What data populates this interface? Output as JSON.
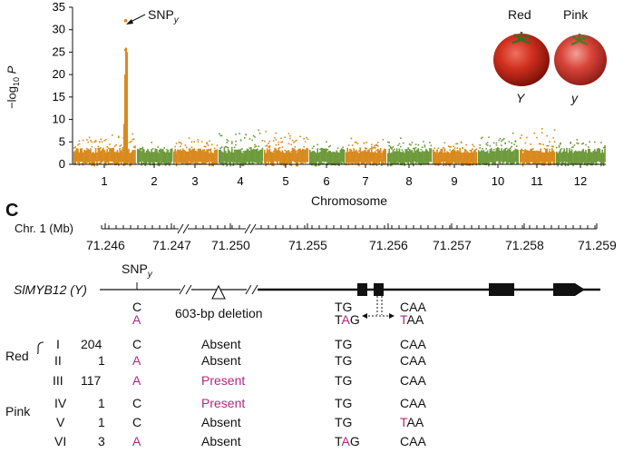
{
  "colors": {
    "orange": "#d98a1e",
    "green": "#6e9a3c",
    "magenta": "#b0287e",
    "tomato": "#c8281c"
  },
  "panel_label": "C",
  "manhattan": {
    "y_ticks": [
      "0",
      "5",
      "10",
      "15",
      "20",
      "25",
      "30",
      "35"
    ],
    "ylabel_prefix": "−log",
    "ylabel_sub": "10",
    "ylabel_suffix": "P",
    "xlabel": "Chromosome",
    "chromosomes": [
      "1",
      "2",
      "3",
      "4",
      "5",
      "6",
      "7",
      "8",
      "9",
      "10",
      "11",
      "12"
    ],
    "snp_label": "SNP",
    "snp_sub": "y",
    "red_label": "Red",
    "pink_label": "Pink",
    "red_allele": "Y",
    "pink_allele": "y"
  },
  "chart_data": {
    "type": "scatter",
    "xlabel": "Chromosome",
    "ylabel": "−log10 P",
    "ylim": [
      0,
      35
    ],
    "categories": [
      "1",
      "2",
      "3",
      "4",
      "5",
      "6",
      "7",
      "8",
      "9",
      "10",
      "11",
      "12"
    ],
    "peak": {
      "chromosome": "1",
      "value": 32,
      "label": "SNPy"
    },
    "baseline_max_per_chromosome": [
      7,
      5,
      6,
      8,
      8,
      5,
      6,
      6,
      6,
      7,
      8,
      6
    ]
  },
  "gene_map": {
    "chr_label": "Chr. 1 (Mb)",
    "positions": [
      "71.246",
      "71.247",
      "71.250",
      "71.255",
      "71.256",
      "71.257",
      "71.258",
      "71.259"
    ],
    "gene_label": "SlMYB12 (Y)",
    "snp_label": "SNP",
    "snp_sub": "y",
    "snp_c": "C",
    "snp_a": "A",
    "deletion_label": "603-bp deletion",
    "tg_top": "TG",
    "tag_t": "T",
    "tag_a": "A",
    "tag_g": "G",
    "caa_top": "CAA",
    "taa_t": "T",
    "taa_rest": "AA"
  },
  "groups": {
    "red": "Red",
    "pink": "Pink"
  },
  "haplotypes": [
    {
      "roman": "I",
      "count": "204",
      "snp": "C",
      "deletion": "Absent",
      "tg": "TG",
      "caa": "CAA"
    },
    {
      "roman": "II",
      "count": "1",
      "snp": "A",
      "deletion": "Absent",
      "tg": "TG",
      "caa": "CAA"
    },
    {
      "roman": "III",
      "count": "117",
      "snp": "A",
      "deletion": "Present",
      "tg": "TG",
      "caa": "CAA"
    },
    {
      "roman": "IV",
      "count": "1",
      "snp": "C",
      "deletion": "Present",
      "tg": "TG",
      "caa": "CAA"
    },
    {
      "roman": "V",
      "count": "1",
      "snp": "C",
      "deletion": "Absent",
      "tg": "TG",
      "caa": "TAA"
    },
    {
      "roman": "VI",
      "count": "3",
      "snp": "A",
      "deletion": "Absent",
      "tg": "TAG",
      "caa": "CAA"
    }
  ]
}
